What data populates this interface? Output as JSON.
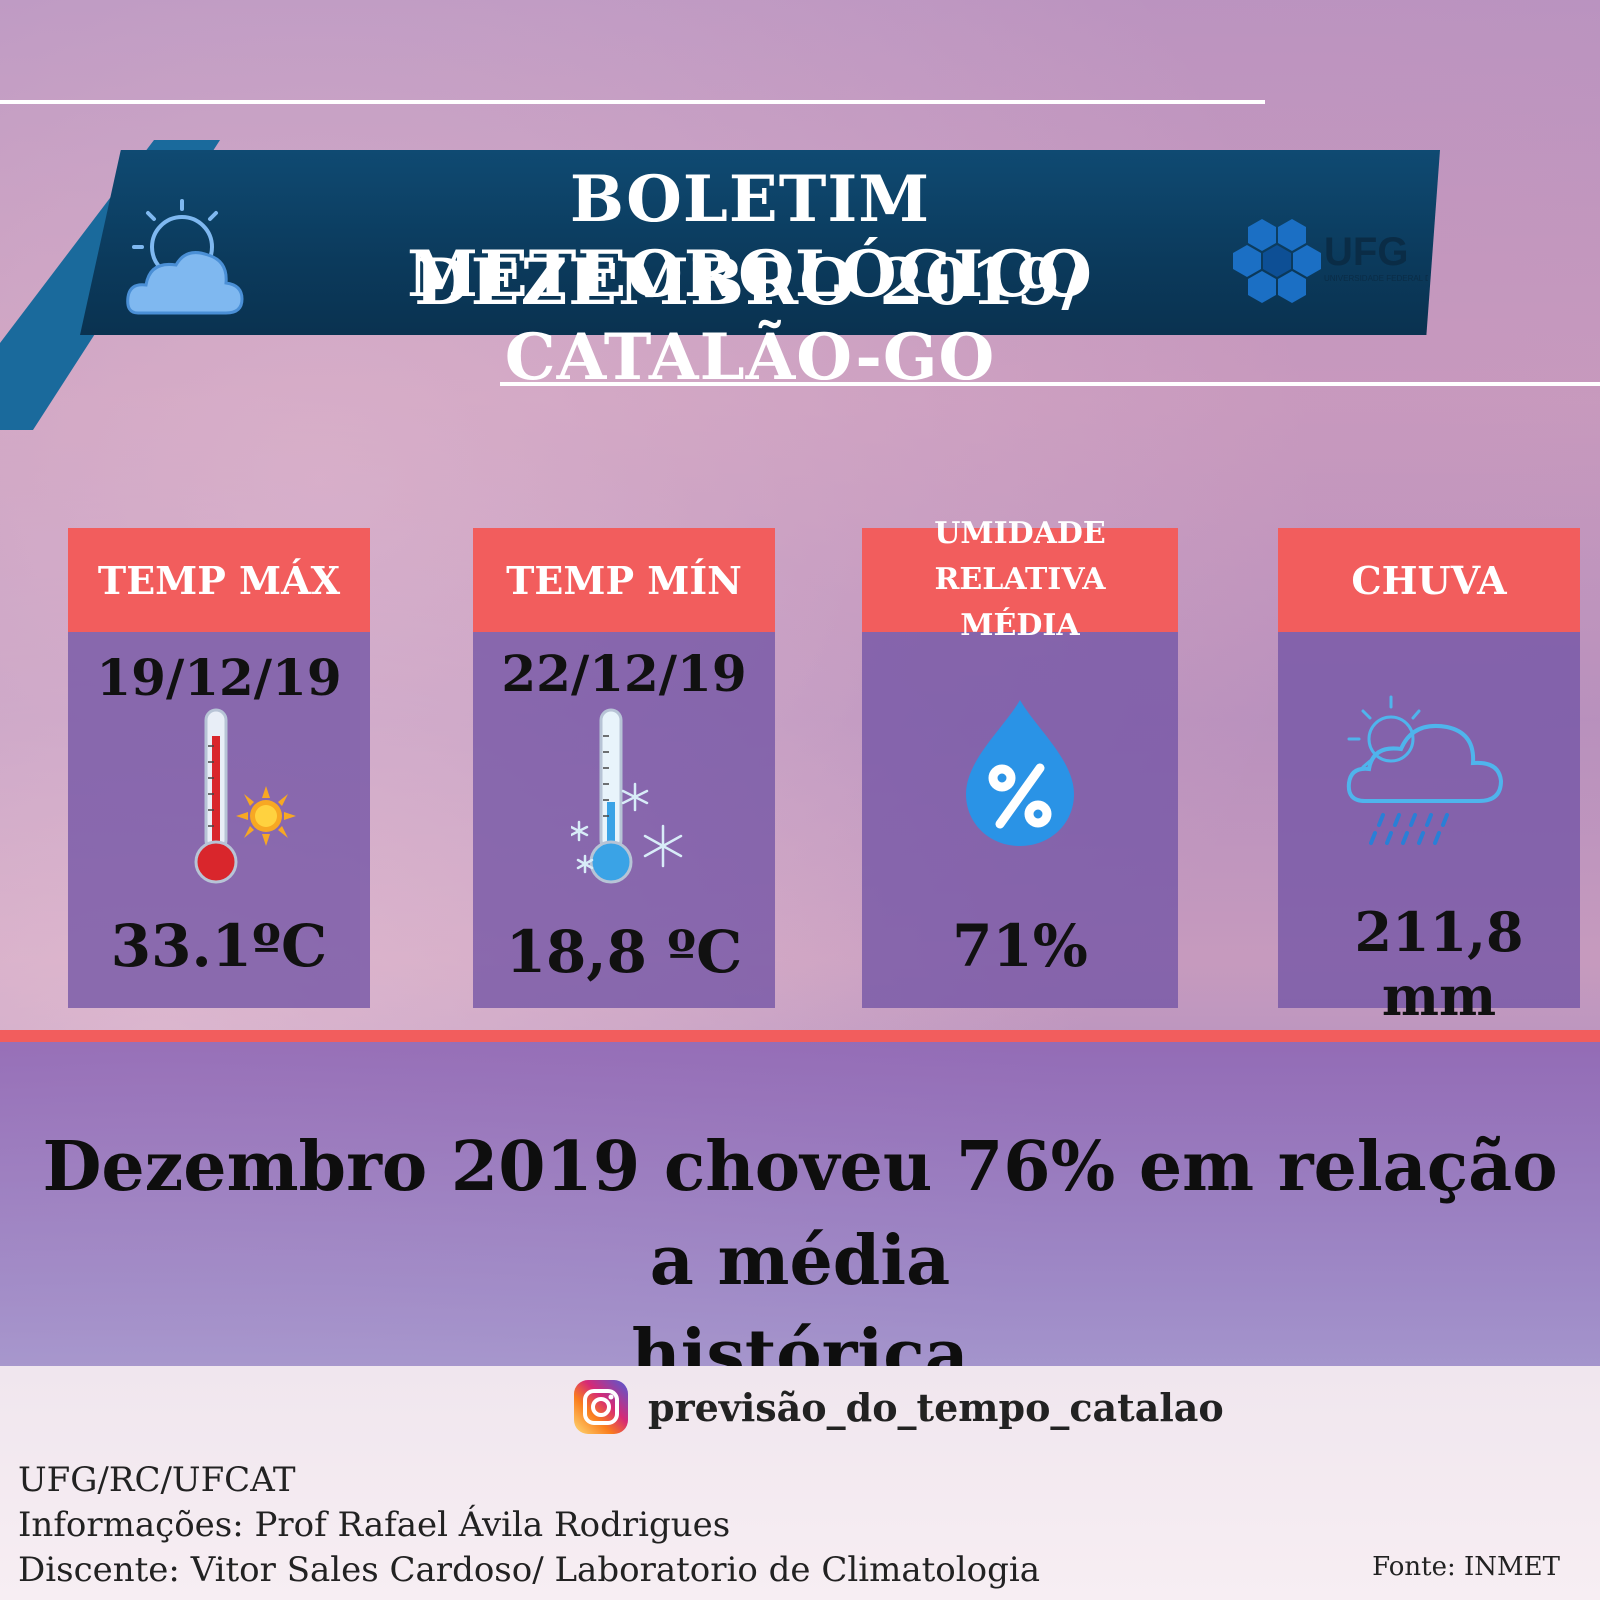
{
  "header": {
    "title_line1": "BOLETIM METEOROLÓGICO",
    "title_line2": "DEZEMBRO  2019/ CATALÃO-GO",
    "logo_text": "UFG",
    "logo_subtext": "UNIVERSIDADE FEDERAL DE GOIÁS"
  },
  "cards": [
    {
      "label": "TEMP MÁX",
      "date": "19/12/19",
      "value": "33.1ºC",
      "icon": "thermometer-hot-icon"
    },
    {
      "label": "TEMP MÍN",
      "date": "22/12/19",
      "value": "18,8 ºC",
      "icon": "thermometer-cold-icon"
    },
    {
      "label_line1": "UMIDADE RELATIVA",
      "label_line2": "MÉDIA",
      "value": "71%",
      "icon": "humidity-drop-icon"
    },
    {
      "label": "CHUVA",
      "value": "211,8 mm",
      "icon": "rain-cloud-icon"
    }
  ],
  "summary": {
    "line1": "Dezembro 2019 choveu 76% em relação a média",
    "line2": "histórica"
  },
  "footer": {
    "instagram_handle": "previsão_do_tempo_catalao",
    "credit_line1": "UFG/RC/UFCAT",
    "credit_line2": "Informações: Prof Rafael Ávila Rodrigues",
    "credit_line3": "Discente: Vitor Sales Cardoso/ Laboratorio de Climatologia",
    "source": "Fonte: INMET"
  },
  "colors": {
    "banner": "#0b3a5c",
    "card_header": "#f25d5d",
    "card_body": "#7355a5",
    "accent_blue": "#2a93e6"
  }
}
